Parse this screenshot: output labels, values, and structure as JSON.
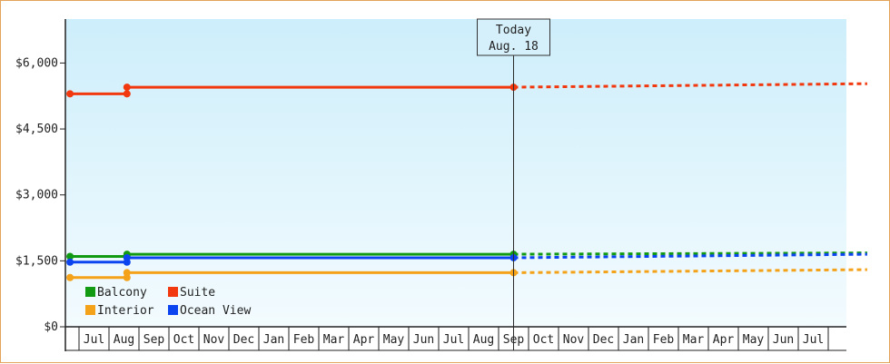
{
  "chart_data": {
    "type": "line",
    "title": "",
    "xlabel": "",
    "ylabel": "",
    "ylim": [
      0,
      7000
    ],
    "y_ticks": [
      "$0",
      "$1,500",
      "$3,000",
      "$4,500",
      "$6,000"
    ],
    "y_tick_values": [
      0,
      1500,
      3000,
      4500,
      6000
    ],
    "months": [
      "Jul",
      "Aug",
      "Sep",
      "Oct",
      "Nov",
      "Dec",
      "Jan",
      "Feb",
      "Mar",
      "Apr",
      "May",
      "Jun",
      "Jul",
      "Aug",
      "Sep",
      "Oct",
      "Nov",
      "Dec",
      "Jan",
      "Feb",
      "Mar",
      "Apr",
      "May",
      "Jun",
      "Jul"
    ],
    "x_range": [
      -0.3,
      26.3
    ],
    "today": {
      "line1": "Today",
      "line2": "Aug. 18",
      "x": 14.5
    },
    "grid": false,
    "legend_position": "bottom-left",
    "series": [
      {
        "name": "Balcony",
        "color": "#129a12",
        "history": [
          [
            -0.3,
            1600
          ],
          [
            1.6,
            1600
          ],
          [
            1.6,
            1650
          ],
          [
            14.5,
            1650
          ]
        ],
        "markers": [
          [
            -0.3,
            1600
          ],
          [
            1.6,
            1600
          ],
          [
            1.6,
            1650
          ],
          [
            14.5,
            1650
          ]
        ],
        "forecast": [
          [
            14.5,
            1650
          ],
          [
            26.3,
            1680
          ]
        ]
      },
      {
        "name": "Suite",
        "color": "#f2380f",
        "history": [
          [
            -0.3,
            5300
          ],
          [
            1.6,
            5300
          ],
          [
            1.6,
            5450
          ],
          [
            14.5,
            5450
          ]
        ],
        "markers": [
          [
            -0.3,
            5300
          ],
          [
            1.6,
            5300
          ],
          [
            1.6,
            5450
          ],
          [
            14.5,
            5450
          ]
        ],
        "forecast": [
          [
            14.5,
            5450
          ],
          [
            26.3,
            5530
          ]
        ]
      },
      {
        "name": "Interior",
        "color": "#f5a21b",
        "history": [
          [
            -0.3,
            1120
          ],
          [
            1.6,
            1120
          ],
          [
            1.6,
            1230
          ],
          [
            14.5,
            1230
          ]
        ],
        "markers": [
          [
            -0.3,
            1120
          ],
          [
            1.6,
            1120
          ],
          [
            1.6,
            1230
          ],
          [
            14.5,
            1230
          ]
        ],
        "forecast": [
          [
            14.5,
            1230
          ],
          [
            26.3,
            1300
          ]
        ]
      },
      {
        "name": "Ocean View",
        "color": "#0c44f0",
        "history": [
          [
            -0.3,
            1470
          ],
          [
            1.6,
            1470
          ],
          [
            1.6,
            1570
          ],
          [
            14.5,
            1570
          ]
        ],
        "markers": [
          [
            -0.3,
            1470
          ],
          [
            1.6,
            1470
          ],
          [
            1.6,
            1570
          ],
          [
            14.5,
            1570
          ]
        ],
        "forecast": [
          [
            14.5,
            1570
          ],
          [
            26.3,
            1650
          ]
        ]
      }
    ]
  }
}
